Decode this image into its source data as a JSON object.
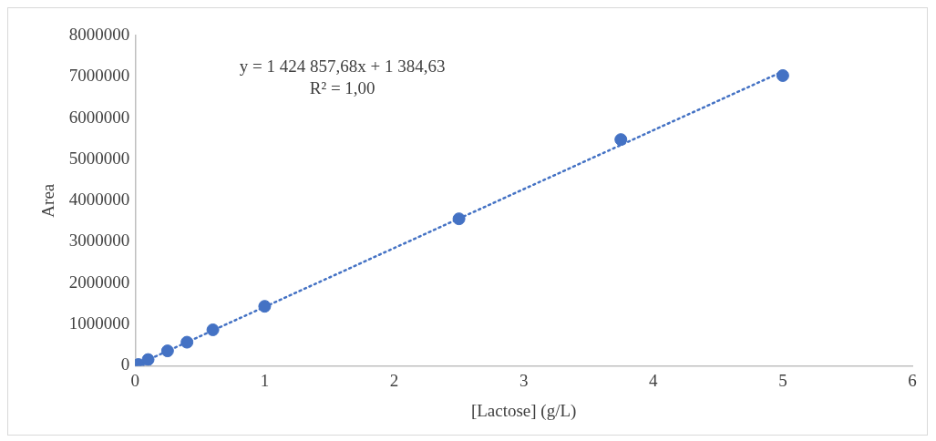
{
  "chart_data": {
    "type": "scatter",
    "xlabel": "[Lactose] (g/L)",
    "ylabel": "Area",
    "series": [
      {
        "type": "scatter",
        "color": "#4472c4",
        "marker": "circle",
        "x": [
          0,
          0.025,
          0.1,
          0.25,
          0.4,
          0.6,
          1,
          2.5,
          3.75,
          5
        ],
        "values": [
          0,
          30000,
          150000,
          360000,
          570000,
          870000,
          1440000,
          3560000,
          5480000,
          7030000
        ]
      },
      {
        "type": "line",
        "color": "#4472c4",
        "line_style": "dotted",
        "marker": "none",
        "x": [
          0,
          5
        ],
        "values": [
          0,
          7130000
        ]
      }
    ],
    "xlim": [
      0,
      6
    ],
    "xticks": [
      0,
      1,
      2,
      3,
      4,
      5,
      6
    ],
    "ylim": [
      0,
      8000000
    ],
    "yticks": [
      0,
      1000000,
      2000000,
      3000000,
      4000000,
      5000000,
      6000000,
      7000000,
      8000000
    ],
    "grid": false,
    "legend": false,
    "annotations": [
      "y = 1 424 857,68x + 1 384,63",
      "R² = 1,00"
    ]
  }
}
